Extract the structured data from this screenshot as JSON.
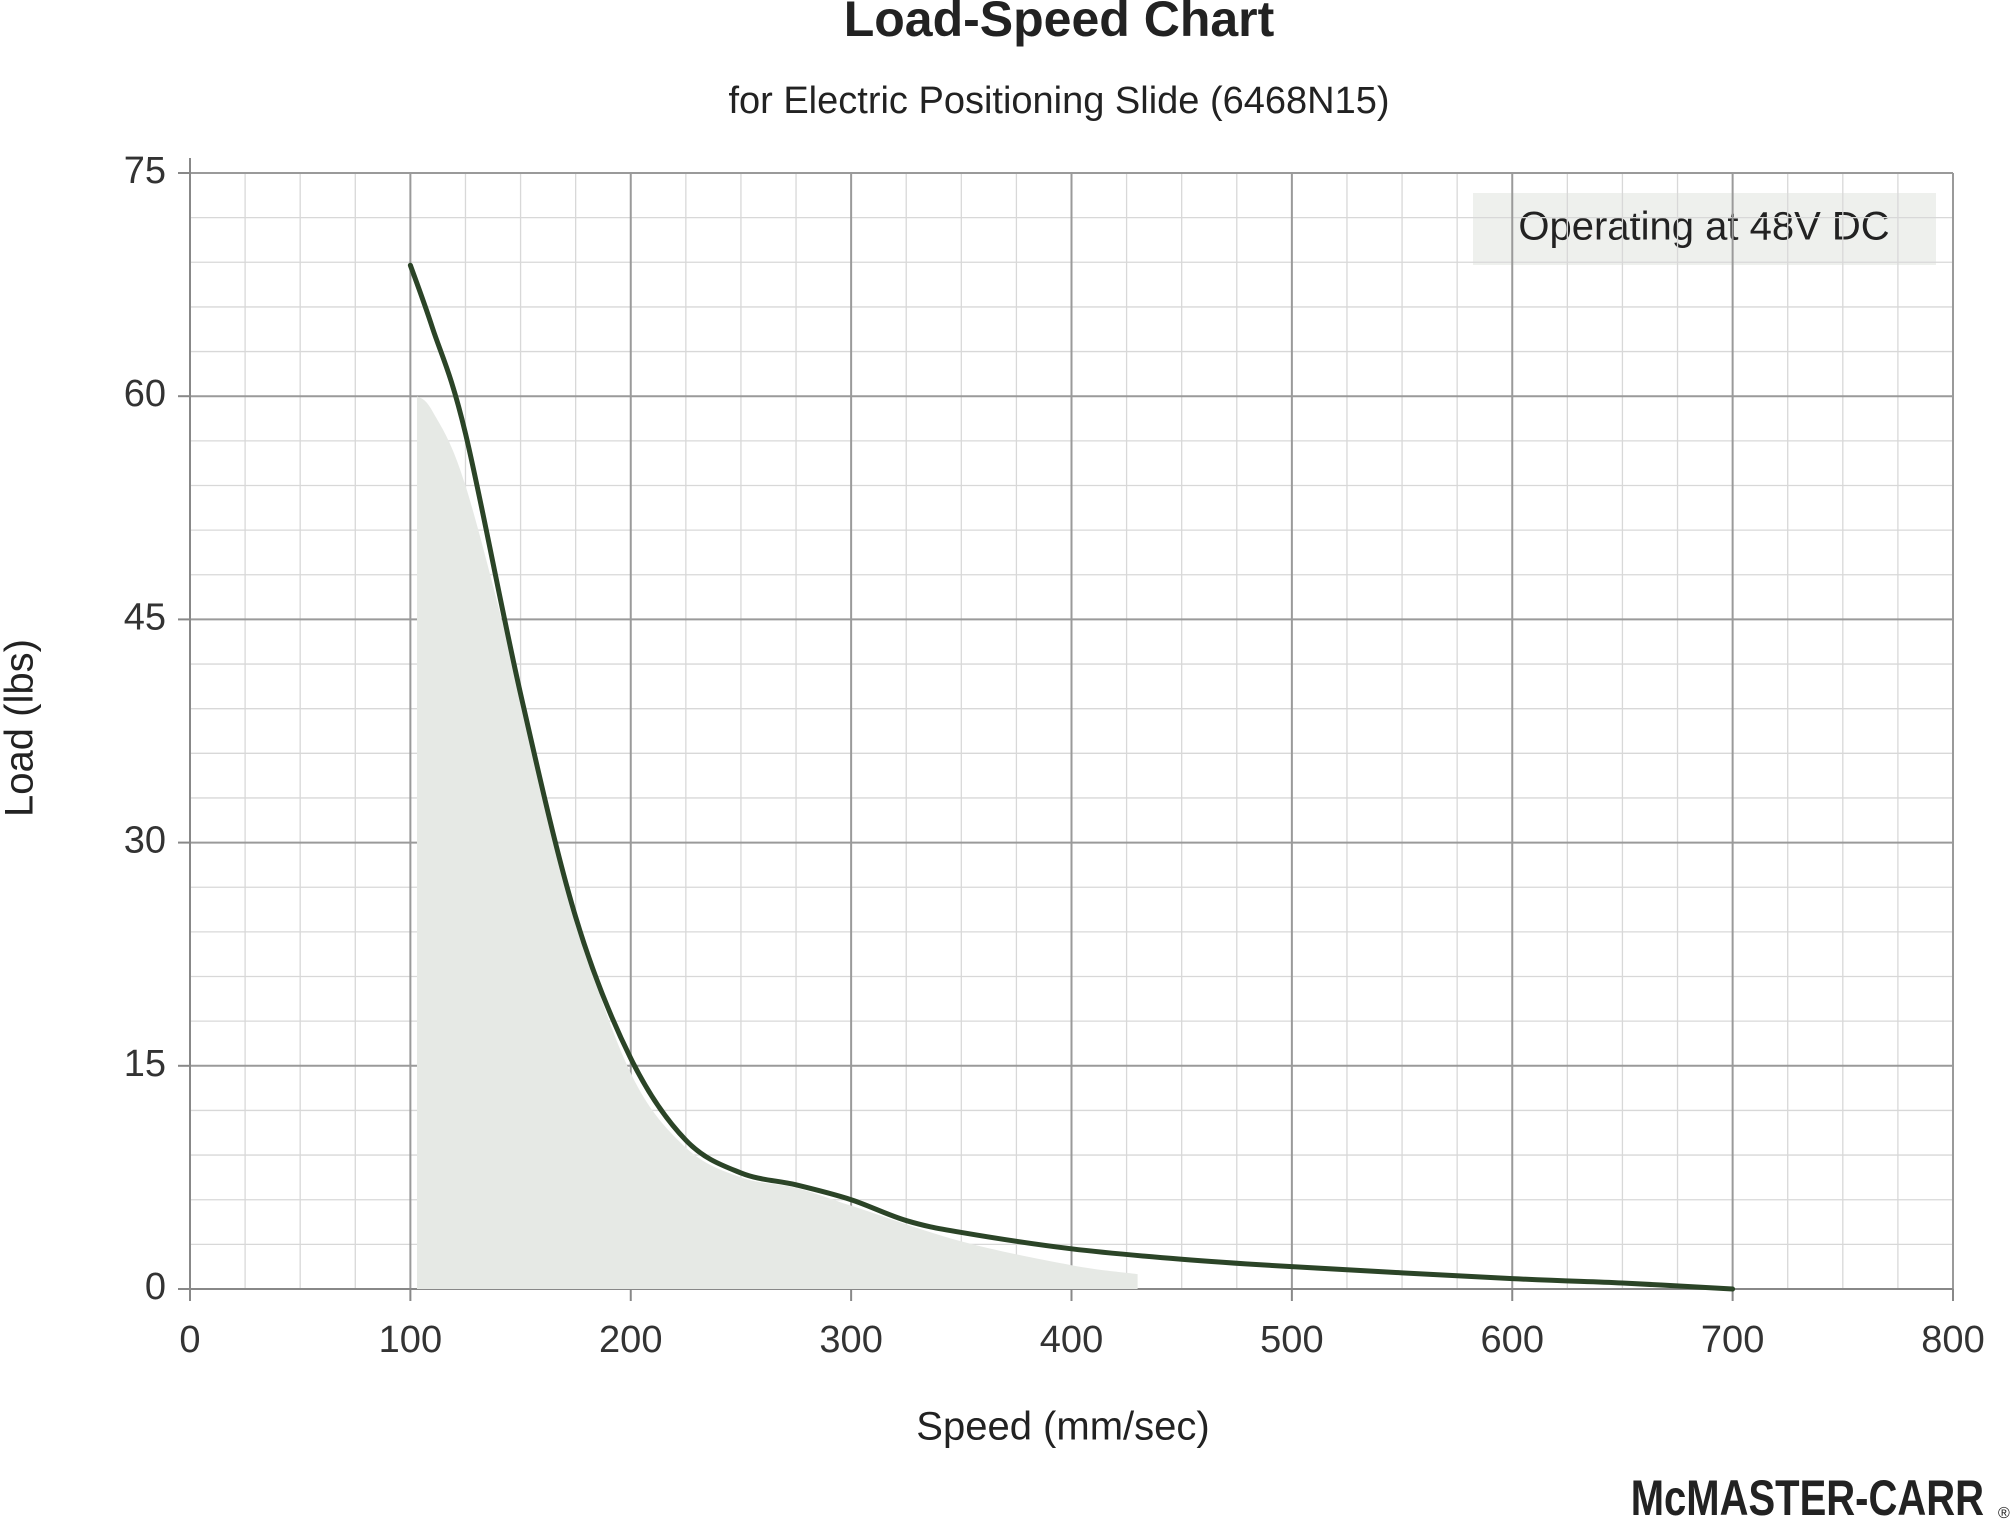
{
  "chart_data": {
    "type": "line",
    "title": "Load-Speed Chart",
    "subtitle": "for Electric Positioning Slide (6468N15)",
    "x_label": "Speed (mm/sec)",
    "y_label": "Load (lbs)",
    "annotation": "Operating at 48V DC",
    "brand": "McMASTER-CARR",
    "xlim": [
      0,
      800
    ],
    "xticks": [
      0,
      100,
      200,
      300,
      400,
      500,
      600,
      700,
      800
    ],
    "x_minor_step": 25,
    "ylim": [
      0,
      75
    ],
    "yticks": [
      0,
      15,
      30,
      45,
      60,
      75
    ],
    "y_minor_step": 3,
    "grid": true,
    "series": [
      {
        "color": "#2b4427",
        "x": [
          100,
          110,
          125,
          150,
          175,
          200,
          225,
          250,
          275,
          300,
          325,
          350,
          400,
          450,
          500,
          600,
          650,
          700
        ],
        "values": [
          68.8,
          64.6,
          57.5,
          40,
          25,
          15.5,
          10,
          7.8,
          7.0,
          6.0,
          4.6,
          3.8,
          2.7,
          2.0,
          1.5,
          0.7,
          0.4,
          0
        ]
      }
    ],
    "area": {
      "color": "#e6e9e5",
      "x": [
        103,
        110,
        125,
        150,
        175,
        200,
        225,
        250,
        275,
        300,
        350,
        400,
        430
      ],
      "values": [
        60,
        59,
        54,
        40,
        25,
        14.5,
        9.5,
        7.5,
        6.8,
        5.6,
        3.2,
        1.6,
        1
      ]
    }
  }
}
